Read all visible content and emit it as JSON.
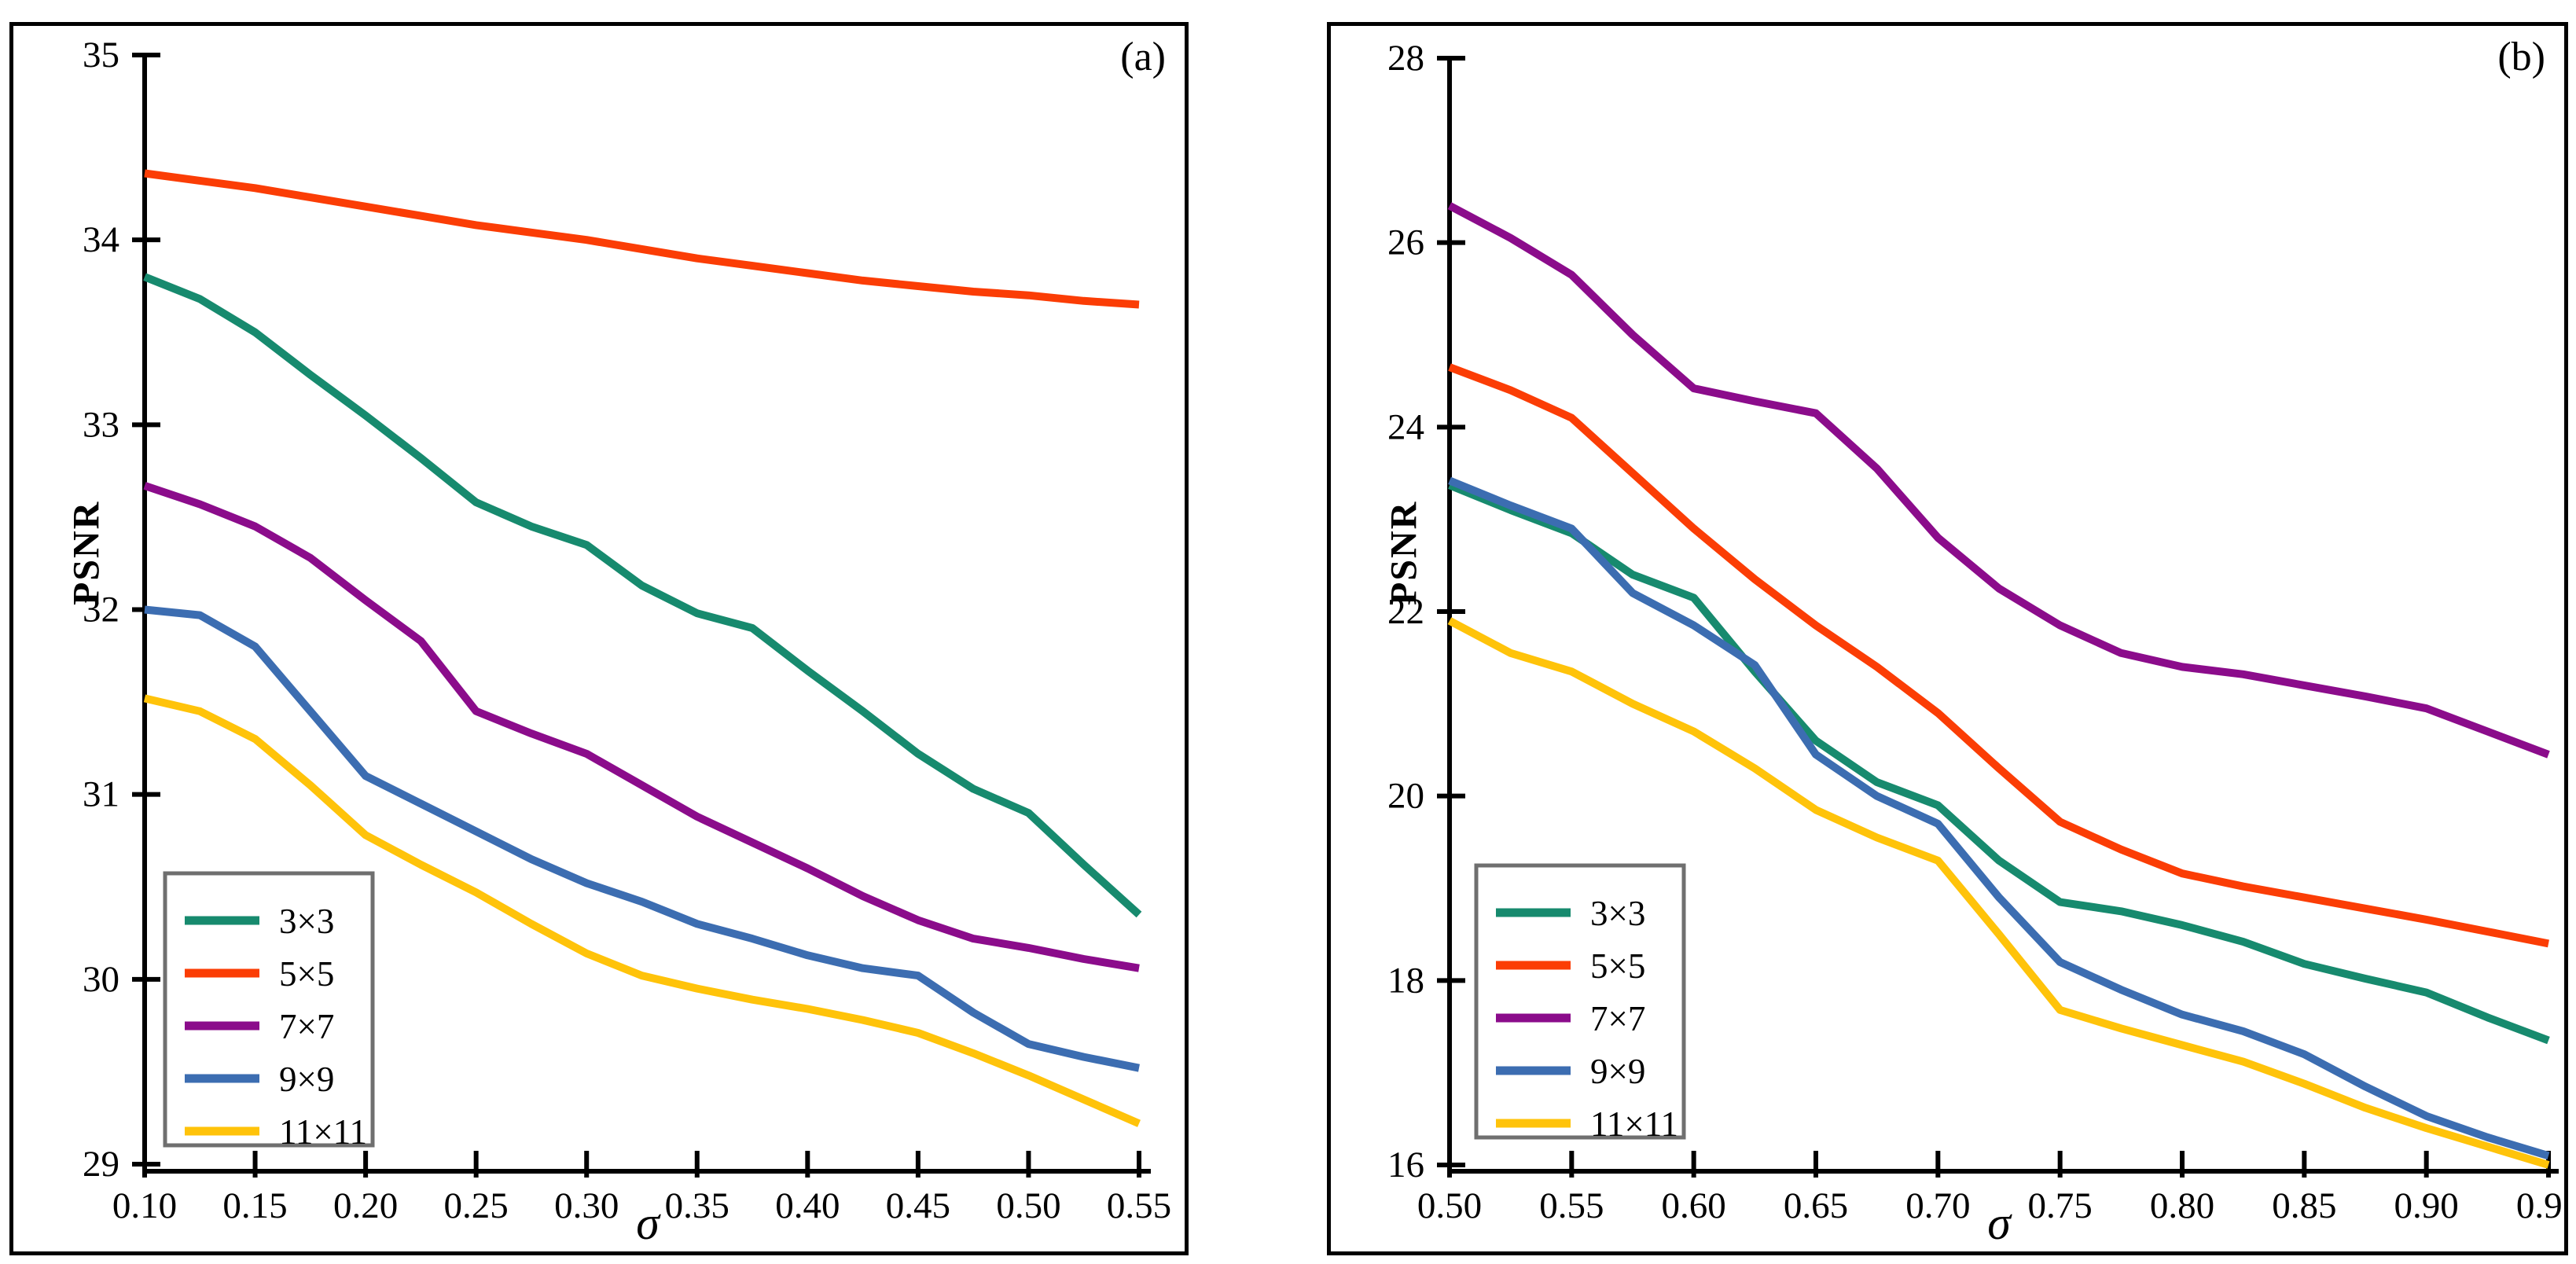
{
  "figure": {
    "background_color": "#ffffff",
    "axis_color": "#000000",
    "legend_border_color": "#6F6F6F"
  },
  "chart_data": [
    {
      "type": "line",
      "panel_label": "(a)",
      "title": "",
      "xlabel": "σ",
      "ylabel": "PSNR",
      "xlim": [
        0.1,
        0.55
      ],
      "ylim": [
        29,
        35
      ],
      "xticks": [
        0.1,
        0.15,
        0.2,
        0.25,
        0.3,
        0.35,
        0.4,
        0.45,
        0.5,
        0.55
      ],
      "yticks": [
        29,
        30,
        31,
        32,
        33,
        34,
        35
      ],
      "grid": false,
      "legend_position": "lower-left",
      "x": [
        0.1,
        0.125,
        0.15,
        0.175,
        0.2,
        0.225,
        0.25,
        0.275,
        0.3,
        0.325,
        0.35,
        0.375,
        0.4,
        0.425,
        0.45,
        0.475,
        0.5,
        0.525,
        0.55
      ],
      "series": [
        {
          "name": "3×3",
          "color": "#178A6E",
          "values": [
            33.8,
            33.68,
            33.5,
            33.27,
            33.05,
            32.82,
            32.58,
            32.45,
            32.35,
            32.13,
            31.98,
            31.9,
            31.67,
            31.45,
            31.22,
            31.03,
            30.9,
            30.62,
            30.35
          ]
        },
        {
          "name": "5×5",
          "color": "#FB3D05",
          "values": [
            34.36,
            34.32,
            34.28,
            34.23,
            34.18,
            34.13,
            34.08,
            34.04,
            34.0,
            33.95,
            33.9,
            33.86,
            33.82,
            33.78,
            33.75,
            33.72,
            33.7,
            33.67,
            33.65
          ]
        },
        {
          "name": "7×7",
          "color": "#8B0C8B",
          "values": [
            32.67,
            32.57,
            32.45,
            32.28,
            32.05,
            31.83,
            31.45,
            31.33,
            31.22,
            31.05,
            30.88,
            30.74,
            30.6,
            30.45,
            30.32,
            30.22,
            30.17,
            30.11,
            30.06
          ]
        },
        {
          "name": "9×9",
          "color": "#3C6DB1",
          "values": [
            32.0,
            31.97,
            31.8,
            31.45,
            31.1,
            30.95,
            30.8,
            30.65,
            30.52,
            30.42,
            30.3,
            30.22,
            30.13,
            30.06,
            30.02,
            29.82,
            29.65,
            29.58,
            29.52
          ]
        },
        {
          "name": "11×11",
          "color": "#FFC30A",
          "values": [
            31.52,
            31.45,
            31.3,
            31.05,
            30.78,
            30.62,
            30.47,
            30.3,
            30.14,
            30.02,
            29.95,
            29.89,
            29.84,
            29.78,
            29.71,
            29.6,
            29.48,
            29.35,
            29.22
          ]
        }
      ]
    },
    {
      "type": "line",
      "panel_label": "(b)",
      "title": "",
      "xlabel": "σ",
      "ylabel": "PSNR",
      "xlim": [
        0.5,
        0.95
      ],
      "ylim": [
        16,
        28
      ],
      "xticks": [
        0.5,
        0.55,
        0.6,
        0.65,
        0.7,
        0.75,
        0.8,
        0.85,
        0.9,
        0.95
      ],
      "yticks": [
        16,
        18,
        20,
        22,
        24,
        26,
        28
      ],
      "grid": false,
      "legend_position": "lower-left",
      "x": [
        0.5,
        0.525,
        0.55,
        0.575,
        0.6,
        0.625,
        0.65,
        0.675,
        0.7,
        0.725,
        0.75,
        0.775,
        0.8,
        0.825,
        0.85,
        0.875,
        0.9,
        0.925,
        0.95
      ],
      "series": [
        {
          "name": "3×3",
          "color": "#178A6E",
          "values": [
            23.37,
            23.1,
            22.85,
            22.4,
            22.15,
            21.35,
            20.6,
            20.15,
            19.9,
            19.3,
            18.85,
            18.75,
            18.6,
            18.42,
            18.18,
            18.02,
            17.87,
            17.6,
            17.35
          ]
        },
        {
          "name": "5×5",
          "color": "#FB3D05",
          "values": [
            24.65,
            24.4,
            24.1,
            23.5,
            22.9,
            22.35,
            21.85,
            21.4,
            20.9,
            20.3,
            19.72,
            19.42,
            19.16,
            19.02,
            18.9,
            18.78,
            18.66,
            18.53,
            18.4
          ]
        },
        {
          "name": "7×7",
          "color": "#8B0C8B",
          "values": [
            26.4,
            26.05,
            25.65,
            25.0,
            24.42,
            24.28,
            24.15,
            23.55,
            22.8,
            22.25,
            21.85,
            21.55,
            21.4,
            21.32,
            21.2,
            21.08,
            20.95,
            20.7,
            20.45
          ]
        },
        {
          "name": "9×9",
          "color": "#3C6DB1",
          "values": [
            23.42,
            23.15,
            22.9,
            22.2,
            21.85,
            21.42,
            20.45,
            20.0,
            19.7,
            18.9,
            18.2,
            17.9,
            17.63,
            17.45,
            17.2,
            16.85,
            16.53,
            16.3,
            16.1
          ]
        },
        {
          "name": "11×11",
          "color": "#FFC30A",
          "values": [
            21.9,
            21.55,
            21.35,
            21.0,
            20.7,
            20.3,
            19.85,
            19.55,
            19.3,
            18.5,
            17.68,
            17.48,
            17.3,
            17.12,
            16.88,
            16.62,
            16.4,
            16.2,
            16.0
          ]
        }
      ]
    }
  ]
}
